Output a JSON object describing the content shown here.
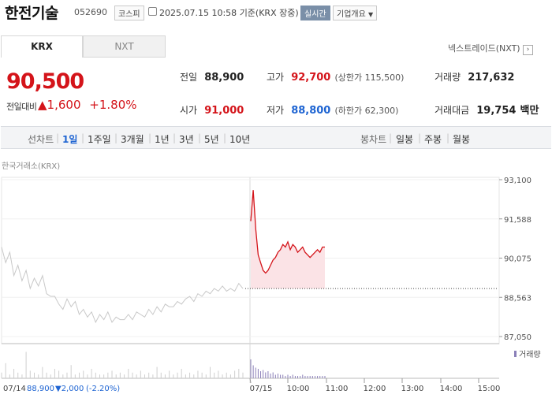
{
  "header": {
    "name": "한전기술",
    "code": "052690",
    "market": "코스피",
    "datetime": "2025.07.15 10:58",
    "basis": "기준(KRX 장중)",
    "realtime": "실시간",
    "company_info": "기업개요"
  },
  "tabs": [
    "KRX",
    "NXT"
  ],
  "nxt_link": "넥스트레이드(NXT)",
  "quote": {
    "price": "90,500",
    "change_label": "전일대비",
    "change": "1,600",
    "change_pct": "+1.80%"
  },
  "stats": {
    "prev_label": "전일",
    "prev": "88,900",
    "high_label": "고가",
    "high": "92,700",
    "upper_limit": "(상한가 115,500)",
    "volume_label": "거래량",
    "volume": "217,632",
    "open_label": "시가",
    "open": "91,000",
    "low_label": "저가",
    "low": "88,800",
    "lower_limit": "(하한가 62,300)",
    "amount_label": "거래대금",
    "amount": "19,754",
    "amount_unit": "백만"
  },
  "periods": {
    "line_label": "선차트",
    "items": [
      "1일",
      "1주일",
      "3개월",
      "1년",
      "3년",
      "5년",
      "10년"
    ],
    "candle_label": "봉차트",
    "candles": [
      "일봉",
      "주봉",
      "월봉"
    ]
  },
  "source": "한국거래소(KRX)",
  "colors": {
    "up": "#d4141a",
    "down": "#1e64d2",
    "prev_line": "#c8c8c8",
    "fill": "#fbe3e6"
  },
  "chart_data": {
    "type": "line",
    "y_ticks": [
      "93,100",
      "91,588",
      "90,075",
      "88,563",
      "87,050"
    ],
    "ylim": [
      87050,
      93100
    ],
    "x_labels": [
      "07/15",
      "10:00",
      "11:00",
      "12:00",
      "13:00",
      "14:00",
      "15:00"
    ],
    "volume_label": "거래량",
    "prev_day": {
      "label": "07/14",
      "close": "88,900",
      "change": "▼2,000",
      "change_pct": "(-2.20%)",
      "values": [
        90500,
        89900,
        90300,
        89400,
        89800,
        89200,
        89600,
        88900,
        89300,
        89000,
        89400,
        88700,
        88600,
        88600,
        88300,
        88100,
        88500,
        88200,
        88400,
        87900,
        88100,
        87800,
        88000,
        87600,
        87900,
        87700,
        88000,
        87600,
        87800,
        87700,
        87700,
        87900,
        87700,
        88000,
        87900,
        87800,
        88100,
        87900,
        88200,
        88000,
        88300,
        88200,
        88200,
        88400,
        88300,
        88500,
        88600,
        88400,
        88700,
        88600,
        88800,
        88700,
        88900,
        88800,
        89000,
        88800,
        88900,
        88800,
        89100,
        88900
      ]
    },
    "today": {
      "values": [
        91500,
        92700,
        91200,
        90200,
        89900,
        89600,
        89500,
        89600,
        89800,
        90000,
        90100,
        90300,
        90400,
        90600,
        90500,
        90700,
        90400,
        90600,
        90500,
        90300,
        90400,
        90500,
        90300,
        90200,
        90100,
        90200,
        90300,
        90400,
        90300,
        90500,
        90500
      ]
    }
  }
}
